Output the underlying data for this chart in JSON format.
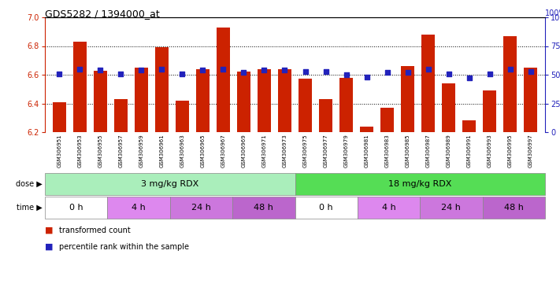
{
  "title": "GDS5282 / 1394000_at",
  "samples": [
    "GSM306951",
    "GSM306953",
    "GSM306955",
    "GSM306957",
    "GSM306959",
    "GSM306961",
    "GSM306963",
    "GSM306965",
    "GSM306967",
    "GSM306969",
    "GSM306971",
    "GSM306973",
    "GSM306975",
    "GSM306977",
    "GSM306979",
    "GSM306981",
    "GSM306983",
    "GSM306985",
    "GSM306987",
    "GSM306989",
    "GSM306991",
    "GSM306993",
    "GSM306995",
    "GSM306997"
  ],
  "transformed_count": [
    6.41,
    6.83,
    6.63,
    6.43,
    6.65,
    6.79,
    6.42,
    6.64,
    6.93,
    6.62,
    6.64,
    6.64,
    6.57,
    6.43,
    6.58,
    6.24,
    6.37,
    6.66,
    6.88,
    6.54,
    6.28,
    6.49,
    6.87,
    6.65
  ],
  "percentile_rank": [
    51,
    55,
    54,
    51,
    54,
    55,
    51,
    54,
    55,
    52,
    54,
    54,
    53,
    53,
    50,
    48,
    52,
    52,
    55,
    51,
    47,
    51,
    55,
    53
  ],
  "ylim_left": [
    6.2,
    7.0
  ],
  "ylim_right": [
    0,
    100
  ],
  "yticks_left": [
    6.2,
    6.4,
    6.6,
    6.8,
    7.0
  ],
  "yticks_right": [
    0,
    25,
    50,
    75,
    100
  ],
  "bar_color": "#cc2200",
  "dot_color": "#2222bb",
  "dose_groups": [
    {
      "label": "3 mg/kg RDX",
      "start": 0,
      "end": 12,
      "color": "#aaeebb"
    },
    {
      "label": "18 mg/kg RDX",
      "start": 12,
      "end": 24,
      "color": "#55dd55"
    }
  ],
  "time_groups": [
    {
      "label": "0 h",
      "start": 0,
      "end": 3,
      "color": "#ffffff"
    },
    {
      "label": "4 h",
      "start": 3,
      "end": 6,
      "color": "#dd88ee"
    },
    {
      "label": "24 h",
      "start": 6,
      "end": 9,
      "color": "#cc77dd"
    },
    {
      "label": "48 h",
      "start": 9,
      "end": 12,
      "color": "#bb66cc"
    },
    {
      "label": "0 h",
      "start": 12,
      "end": 15,
      "color": "#ffffff"
    },
    {
      "label": "4 h",
      "start": 15,
      "end": 18,
      "color": "#dd88ee"
    },
    {
      "label": "24 h",
      "start": 18,
      "end": 21,
      "color": "#cc77dd"
    },
    {
      "label": "48 h",
      "start": 21,
      "end": 24,
      "color": "#bb66cc"
    }
  ],
  "legend_bar_label": "transformed count",
  "legend_dot_label": "percentile rank within the sample",
  "xlabel_gray_bg": "#dddddd",
  "dose_left_label": "dose",
  "time_left_label": "time"
}
